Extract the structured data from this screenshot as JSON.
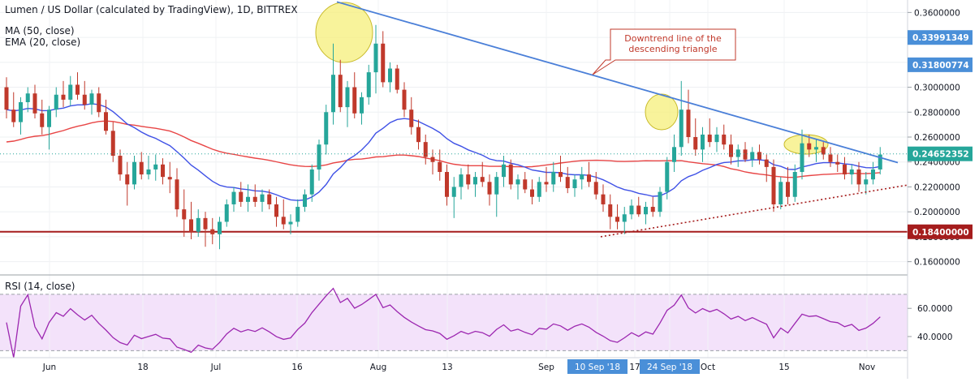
{
  "header": {
    "title": "Lumen / US Dollar (calculated by TradingView), 1D, BITTREX",
    "ma_label": "MA (50, close)",
    "ema_label": "EMA (20, close)"
  },
  "rsi_label": "RSI (14, close)",
  "annotation": {
    "line1": "Downtrend line of the",
    "line2": "descending triangle"
  },
  "colors": {
    "up": "#26a69a",
    "down": "#c0392b",
    "ma": "#e84545",
    "ema": "#3f51e6",
    "trendline": "#4a7fd8",
    "support": "#a51d1d",
    "rsi": "#9c27b0",
    "rsi_band": "#f3e2fa",
    "highlight": "#f6ef7a"
  },
  "chart_data": [
    {
      "type": "candlestick",
      "title": "Lumen / US Dollar (calculated by TradingView), 1D, BITTREX",
      "ylim": [
        0.15,
        0.37
      ],
      "y_ticks": [
        "0.1600000",
        "0.1800000",
        "0.2000000",
        "0.2200000",
        "0.2400000",
        "0.2600000",
        "0.2800000",
        "0.3000000",
        "0.3200000",
        "0.3400000",
        "0.3600000"
      ],
      "price_labels": [
        {
          "value": 0.33991349,
          "label": "0.33991349"
        },
        {
          "value": 0.31800774,
          "label": "0.31800774"
        },
        {
          "value": 0.24652352,
          "label": "0.24652352"
        },
        {
          "value": 0.184,
          "label": "0.18400000"
        }
      ],
      "x_labels": [
        "Jun",
        "18",
        "Jul",
        "16",
        "Aug",
        "13",
        "Sep",
        "10 Sep '18",
        "17",
        "24 Sep '18",
        "Oct",
        "15",
        "Nov"
      ],
      "support_level": 0.184,
      "series": [
        {
          "name": "MA (50, close)",
          "kind": "ma"
        },
        {
          "name": "EMA (20, close)",
          "kind": "ema"
        }
      ],
      "ohlc": [
        [
          0.3,
          0.308,
          0.275,
          0.282
        ],
        [
          0.282,
          0.296,
          0.268,
          0.272
        ],
        [
          0.272,
          0.292,
          0.262,
          0.288
        ],
        [
          0.288,
          0.3,
          0.28,
          0.295
        ],
        [
          0.295,
          0.302,
          0.275,
          0.279
        ],
        [
          0.279,
          0.29,
          0.262,
          0.268
        ],
        [
          0.268,
          0.285,
          0.25,
          0.282
        ],
        [
          0.282,
          0.3,
          0.276,
          0.294
        ],
        [
          0.294,
          0.305,
          0.284,
          0.29
        ],
        [
          0.29,
          0.309,
          0.285,
          0.302
        ],
        [
          0.302,
          0.312,
          0.29,
          0.294
        ],
        [
          0.294,
          0.305,
          0.282,
          0.286
        ],
        [
          0.286,
          0.298,
          0.278,
          0.295
        ],
        [
          0.295,
          0.3,
          0.276,
          0.28
        ],
        [
          0.28,
          0.29,
          0.262,
          0.265
        ],
        [
          0.265,
          0.272,
          0.24,
          0.245
        ],
        [
          0.245,
          0.25,
          0.225,
          0.23
        ],
        [
          0.23,
          0.24,
          0.205,
          0.222
        ],
        [
          0.222,
          0.245,
          0.218,
          0.24
        ],
        [
          0.24,
          0.248,
          0.226,
          0.23
        ],
        [
          0.23,
          0.245,
          0.226,
          0.234
        ],
        [
          0.234,
          0.246,
          0.225,
          0.238
        ],
        [
          0.238,
          0.243,
          0.222,
          0.228
        ],
        [
          0.228,
          0.24,
          0.215,
          0.226
        ],
        [
          0.226,
          0.235,
          0.196,
          0.202
        ],
        [
          0.202,
          0.218,
          0.18,
          0.194
        ],
        [
          0.194,
          0.208,
          0.178,
          0.184
        ],
        [
          0.184,
          0.202,
          0.18,
          0.195
        ],
        [
          0.195,
          0.2,
          0.172,
          0.186
        ],
        [
          0.186,
          0.195,
          0.174,
          0.182
        ],
        [
          0.182,
          0.196,
          0.17,
          0.192
        ],
        [
          0.192,
          0.21,
          0.188,
          0.206
        ],
        [
          0.206,
          0.22,
          0.2,
          0.216
        ],
        [
          0.216,
          0.224,
          0.204,
          0.208
        ],
        [
          0.208,
          0.222,
          0.2,
          0.212
        ],
        [
          0.212,
          0.222,
          0.204,
          0.208
        ],
        [
          0.208,
          0.218,
          0.2,
          0.214
        ],
        [
          0.214,
          0.218,
          0.202,
          0.206
        ],
        [
          0.206,
          0.212,
          0.188,
          0.196
        ],
        [
          0.196,
          0.21,
          0.186,
          0.19
        ],
        [
          0.19,
          0.198,
          0.182,
          0.192
        ],
        [
          0.192,
          0.21,
          0.188,
          0.204
        ],
        [
          0.204,
          0.218,
          0.2,
          0.214
        ],
        [
          0.214,
          0.238,
          0.208,
          0.234
        ],
        [
          0.234,
          0.258,
          0.225,
          0.254
        ],
        [
          0.254,
          0.286,
          0.246,
          0.28
        ],
        [
          0.28,
          0.335,
          0.27,
          0.31
        ],
        [
          0.31,
          0.322,
          0.28,
          0.284
        ],
        [
          0.284,
          0.305,
          0.268,
          0.3
        ],
        [
          0.3,
          0.312,
          0.275,
          0.279
        ],
        [
          0.279,
          0.296,
          0.27,
          0.292
        ],
        [
          0.292,
          0.318,
          0.286,
          0.312
        ],
        [
          0.312,
          0.35,
          0.295,
          0.335
        ],
        [
          0.335,
          0.345,
          0.3,
          0.304
        ],
        [
          0.304,
          0.32,
          0.296,
          0.315
        ],
        [
          0.315,
          0.318,
          0.295,
          0.298
        ],
        [
          0.298,
          0.304,
          0.276,
          0.282
        ],
        [
          0.282,
          0.292,
          0.262,
          0.268
        ],
        [
          0.268,
          0.274,
          0.25,
          0.256
        ],
        [
          0.256,
          0.262,
          0.238,
          0.244
        ],
        [
          0.244,
          0.25,
          0.23,
          0.24
        ],
        [
          0.24,
          0.25,
          0.225,
          0.232
        ],
        [
          0.232,
          0.238,
          0.205,
          0.212
        ],
        [
          0.212,
          0.228,
          0.195,
          0.22
        ],
        [
          0.22,
          0.235,
          0.21,
          0.23
        ],
        [
          0.23,
          0.238,
          0.218,
          0.222
        ],
        [
          0.222,
          0.232,
          0.212,
          0.228
        ],
        [
          0.228,
          0.24,
          0.22,
          0.224
        ],
        [
          0.224,
          0.23,
          0.205,
          0.214
        ],
        [
          0.214,
          0.232,
          0.196,
          0.228
        ],
        [
          0.228,
          0.245,
          0.22,
          0.238
        ],
        [
          0.238,
          0.242,
          0.218,
          0.222
        ],
        [
          0.222,
          0.23,
          0.21,
          0.226
        ],
        [
          0.226,
          0.232,
          0.215,
          0.218
        ],
        [
          0.218,
          0.226,
          0.206,
          0.212
        ],
        [
          0.212,
          0.228,
          0.208,
          0.224
        ],
        [
          0.224,
          0.236,
          0.216,
          0.222
        ],
        [
          0.222,
          0.24,
          0.216,
          0.232
        ],
        [
          0.232,
          0.245,
          0.224,
          0.228
        ],
        [
          0.228,
          0.236,
          0.215,
          0.219
        ],
        [
          0.219,
          0.23,
          0.212,
          0.226
        ],
        [
          0.226,
          0.236,
          0.218,
          0.23
        ],
        [
          0.23,
          0.24,
          0.22,
          0.224
        ],
        [
          0.224,
          0.232,
          0.21,
          0.214
        ],
        [
          0.214,
          0.222,
          0.2,
          0.206
        ],
        [
          0.206,
          0.214,
          0.186,
          0.196
        ],
        [
          0.196,
          0.206,
          0.186,
          0.192
        ],
        [
          0.192,
          0.204,
          0.182,
          0.198
        ],
        [
          0.198,
          0.21,
          0.194,
          0.205
        ],
        [
          0.205,
          0.212,
          0.196,
          0.198
        ],
        [
          0.198,
          0.208,
          0.19,
          0.204
        ],
        [
          0.204,
          0.212,
          0.196,
          0.2
        ],
        [
          0.2,
          0.22,
          0.196,
          0.216
        ],
        [
          0.216,
          0.244,
          0.21,
          0.24
        ],
        [
          0.24,
          0.262,
          0.232,
          0.252
        ],
        [
          0.252,
          0.305,
          0.245,
          0.282
        ],
        [
          0.282,
          0.298,
          0.255,
          0.26
        ],
        [
          0.26,
          0.275,
          0.245,
          0.25
        ],
        [
          0.25,
          0.268,
          0.24,
          0.262
        ],
        [
          0.262,
          0.275,
          0.252,
          0.256
        ],
        [
          0.256,
          0.268,
          0.248,
          0.262
        ],
        [
          0.262,
          0.27,
          0.25,
          0.254
        ],
        [
          0.254,
          0.262,
          0.238,
          0.244
        ],
        [
          0.244,
          0.254,
          0.236,
          0.25
        ],
        [
          0.25,
          0.256,
          0.24,
          0.242
        ],
        [
          0.242,
          0.252,
          0.236,
          0.248
        ],
        [
          0.248,
          0.254,
          0.238,
          0.242
        ],
        [
          0.242,
          0.246,
          0.224,
          0.236
        ],
        [
          0.236,
          0.242,
          0.2,
          0.206
        ],
        [
          0.206,
          0.228,
          0.202,
          0.224
        ],
        [
          0.224,
          0.236,
          0.206,
          0.212
        ],
        [
          0.212,
          0.238,
          0.208,
          0.232
        ],
        [
          0.232,
          0.266,
          0.226,
          0.255
        ],
        [
          0.255,
          0.262,
          0.244,
          0.25
        ],
        [
          0.25,
          0.258,
          0.24,
          0.252
        ],
        [
          0.252,
          0.256,
          0.242,
          0.246
        ],
        [
          0.246,
          0.252,
          0.236,
          0.24
        ],
        [
          0.24,
          0.246,
          0.232,
          0.238
        ],
        [
          0.238,
          0.244,
          0.226,
          0.23
        ],
        [
          0.23,
          0.238,
          0.222,
          0.234
        ],
        [
          0.234,
          0.24,
          0.216,
          0.222
        ],
        [
          0.222,
          0.232,
          0.214,
          0.226
        ],
        [
          0.226,
          0.24,
          0.222,
          0.234
        ],
        [
          0.234,
          0.252,
          0.23,
          0.246
        ]
      ]
    },
    {
      "type": "line",
      "title": "RSI (14, close)",
      "ylim": [
        25,
        82
      ],
      "y_ticks": [
        "40.0000",
        "60.0000"
      ],
      "band": [
        30,
        70
      ]
    }
  ]
}
